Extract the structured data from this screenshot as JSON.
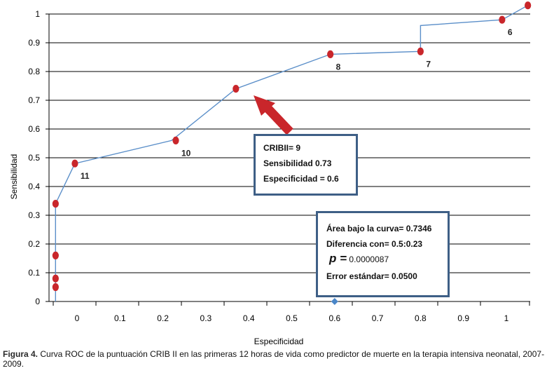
{
  "chart_data": {
    "type": "line",
    "xlabel": "Especificidad",
    "ylabel": "Sensibilidad",
    "y_ticks": [
      "0",
      "0.1",
      "0.2",
      "0.3",
      "0.4",
      "0.5",
      "0.6",
      "0.7",
      "0.8",
      "0.9",
      "1"
    ],
    "x_ticks": [
      "0",
      "0.1",
      "0.2",
      "0.3",
      "0.4",
      "0.5",
      "0.6",
      "0.7",
      "0.8",
      "0.9",
      "1"
    ],
    "grid": "horizontal",
    "curve": [
      {
        "x": -0.05,
        "y": 0.0
      },
      {
        "x": -0.05,
        "y": 0.05
      },
      {
        "x": -0.05,
        "y": 0.08
      },
      {
        "x": -0.05,
        "y": 0.16
      },
      {
        "x": -0.05,
        "y": 0.34
      },
      {
        "x": -0.005,
        "y": 0.48
      },
      {
        "x": 0.22,
        "y": 0.56
      },
      {
        "x": 0.37,
        "y": 0.74
      },
      {
        "x": 0.59,
        "y": 0.86
      },
      {
        "x": 0.8,
        "y": 0.87
      },
      {
        "x": 0.8,
        "y": 0.96
      },
      {
        "x": 0.99,
        "y": 0.98
      },
      {
        "x": 1.05,
        "y": 1.03
      }
    ],
    "points": [
      {
        "x": -0.05,
        "y": 0.05,
        "label": ""
      },
      {
        "x": -0.05,
        "y": 0.08,
        "label": ""
      },
      {
        "x": -0.05,
        "y": 0.16,
        "label": ""
      },
      {
        "x": -0.05,
        "y": 0.34,
        "label": ""
      },
      {
        "x": -0.005,
        "y": 0.48,
        "label": "11"
      },
      {
        "x": 0.23,
        "y": 0.56,
        "label": "10"
      },
      {
        "x": 0.37,
        "y": 0.74,
        "label": ""
      },
      {
        "x": 0.59,
        "y": 0.86,
        "label": "8"
      },
      {
        "x": 0.8,
        "y": 0.87,
        "label": "7"
      },
      {
        "x": 0.99,
        "y": 0.98,
        "label": "6"
      },
      {
        "x": 1.05,
        "y": 1.03,
        "label": ""
      }
    ],
    "reference_point": {
      "x": 0.6,
      "y": 0.0
    },
    "colors": {
      "line": "#5b8fc9",
      "point": "#c9262b",
      "arrow": "#c9262b",
      "reference": "#4a86c8",
      "box_border": "#3e5f86"
    }
  },
  "annotation_box_1": {
    "line1": "CRIBII= 9",
    "line2": "Sensibilidad 0.73",
    "line3": "Especificidad = 0.6"
  },
  "annotation_box_2": {
    "line1": "Área bajo la curva= 0.7346",
    "line2": "Diferencia con= 0.5:0.23",
    "p_symbol": "p =",
    "p_value": "0.0000087",
    "line4": "Error estándar= 0.0500"
  },
  "caption": {
    "label": "Figura 4.",
    "text": " Curva ROC de la puntuación CRIB II en las primeras 12 horas de vida como predictor de muerte en la terapia intensiva neonatal, 2007-2009."
  }
}
